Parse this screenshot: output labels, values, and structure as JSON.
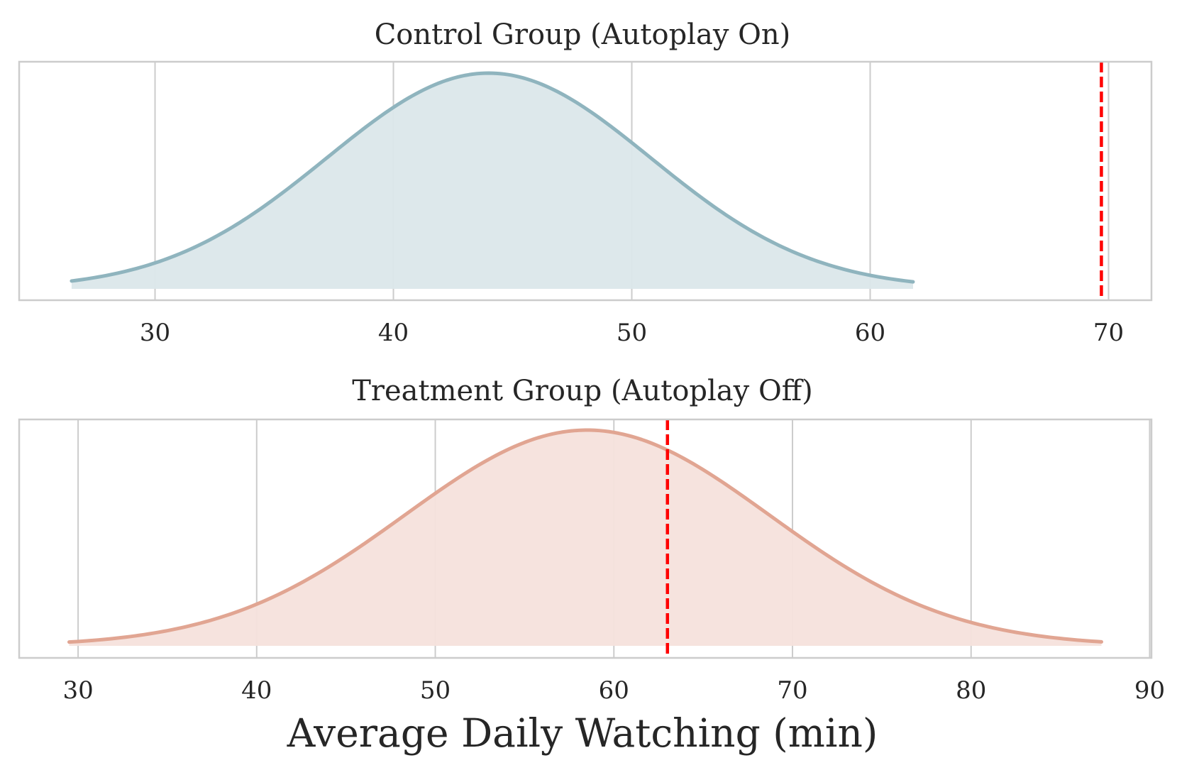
{
  "chart_data": [
    {
      "type": "area",
      "title": "Control Group (Autoplay On)",
      "xlabel": "",
      "ylabel": "",
      "xlim": [
        24.3,
        71.8
      ],
      "xticks": [
        30,
        40,
        50,
        60,
        70
      ],
      "grid": true,
      "curve": {
        "kind": "normal_kde",
        "mean": 44.0,
        "sd": 6.8,
        "x_range": [
          26.5,
          61.8
        ],
        "line_color": "#8fb4be",
        "fill_color": "#dbe7ea"
      },
      "reference_line": {
        "x": 69.7,
        "color": "#ff0000",
        "style": "dashed"
      }
    },
    {
      "type": "area",
      "title": "Treatment Group (Autoplay Off)",
      "xlabel": "Average Daily Watching (min)",
      "ylabel": "",
      "xlim": [
        26.7,
        90.1
      ],
      "xticks": [
        30,
        40,
        50,
        60,
        70,
        80,
        90
      ],
      "grid": true,
      "curve": {
        "kind": "normal_kde",
        "mean": 58.5,
        "sd": 10.2,
        "x_range": [
          29.5,
          87.3
        ],
        "line_color": "#e1a592",
        "fill_color": "#f5e1dc"
      },
      "reference_line": {
        "x": 63.0,
        "color": "#ff0000",
        "style": "dashed"
      }
    }
  ]
}
